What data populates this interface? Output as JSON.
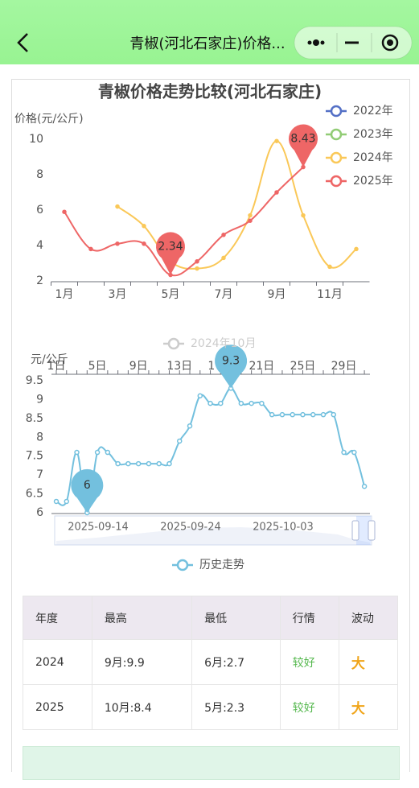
{
  "header": {
    "title": "青椒(河北石家庄)价格..."
  },
  "chart_data": [
    {
      "type": "line",
      "title": "青椒价格走势比较(河北石家庄)",
      "y_label": "价格(元/公斤)",
      "categories": [
        "1月",
        null,
        "3月",
        null,
        "5月",
        null,
        "7月",
        null,
        "9月",
        null,
        "11月",
        null
      ],
      "series": [
        {
          "name": "2022年",
          "color": "#5470c6",
          "values": [
            null,
            null,
            null,
            null,
            null,
            null,
            null,
            null,
            null,
            null,
            null,
            null
          ]
        },
        {
          "name": "2023年",
          "color": "#91cc75",
          "values": [
            null,
            null,
            null,
            null,
            null,
            null,
            null,
            null,
            null,
            null,
            null,
            null
          ]
        },
        {
          "name": "2024年",
          "color": "#fac858",
          "values": [
            null,
            null,
            6.2,
            5.1,
            3.1,
            2.7,
            3.3,
            5.7,
            9.9,
            5.7,
            2.8,
            3.8
          ]
        },
        {
          "name": "2025年",
          "color": "#ee6666",
          "values": [
            5.9,
            3.8,
            4.1,
            4.1,
            2.34,
            3.1,
            4.6,
            5.4,
            7.0,
            8.43,
            null,
            null
          ],
          "pinned": [
            4,
            9
          ]
        }
      ],
      "ylim": [
        2,
        10
      ],
      "yticks": [
        2,
        4,
        6,
        8,
        10
      ],
      "grid": false,
      "smooth": true,
      "legend": "top-right"
    },
    {
      "type": "line",
      "y_label": "元/公斤",
      "categories": [
        "1日",
        null,
        null,
        null,
        "5日",
        null,
        null,
        null,
        "9日",
        null,
        null,
        null,
        "13日",
        null,
        null,
        null,
        "17日",
        null,
        null,
        null,
        "21日",
        null,
        null,
        null,
        "25日",
        null,
        null,
        null,
        "29日",
        null,
        null
      ],
      "series": [
        {
          "name": "2024年10月",
          "color": "#cccccc",
          "hidden": true,
          "values": [
            null,
            null,
            null,
            null,
            null,
            null,
            null,
            null,
            null,
            null,
            null,
            null,
            null,
            null,
            null,
            null,
            null,
            null,
            null,
            null,
            null,
            null,
            null,
            null,
            null,
            null,
            null,
            null,
            null,
            null,
            null
          ]
        },
        {
          "name": "历史走势",
          "color": "#73c0de",
          "values": [
            6.3,
            6.3,
            7.6,
            6,
            7.6,
            7.6,
            7.3,
            7.3,
            7.3,
            7.3,
            7.3,
            7.3,
            7.9,
            8.3,
            9.1,
            8.9,
            8.9,
            9.3,
            8.9,
            8.9,
            8.9,
            8.6,
            8.6,
            8.6,
            8.6,
            8.6,
            8.6,
            8.6,
            7.6,
            7.6,
            6.7
          ],
          "pinned": [
            3,
            17
          ]
        }
      ],
      "ylim": [
        6,
        9.5
      ],
      "yticks": [
        6,
        6.5,
        7,
        7.5,
        8,
        8.5,
        9,
        9.5
      ],
      "grid": false,
      "smooth": true,
      "legend": "bottom",
      "slider_labels": [
        "2025-09-14",
        "2025-09-24",
        "2025-10-03"
      ]
    }
  ],
  "table": {
    "headers": [
      "年度",
      "最高",
      "最低",
      "行情",
      "波动"
    ],
    "rows": [
      [
        "2024",
        "9月:9.9",
        "6月:2.7",
        "较好",
        "大"
      ],
      [
        "2025",
        "10月:8.4",
        "5月:2.3",
        "较好",
        "大"
      ]
    ]
  }
}
